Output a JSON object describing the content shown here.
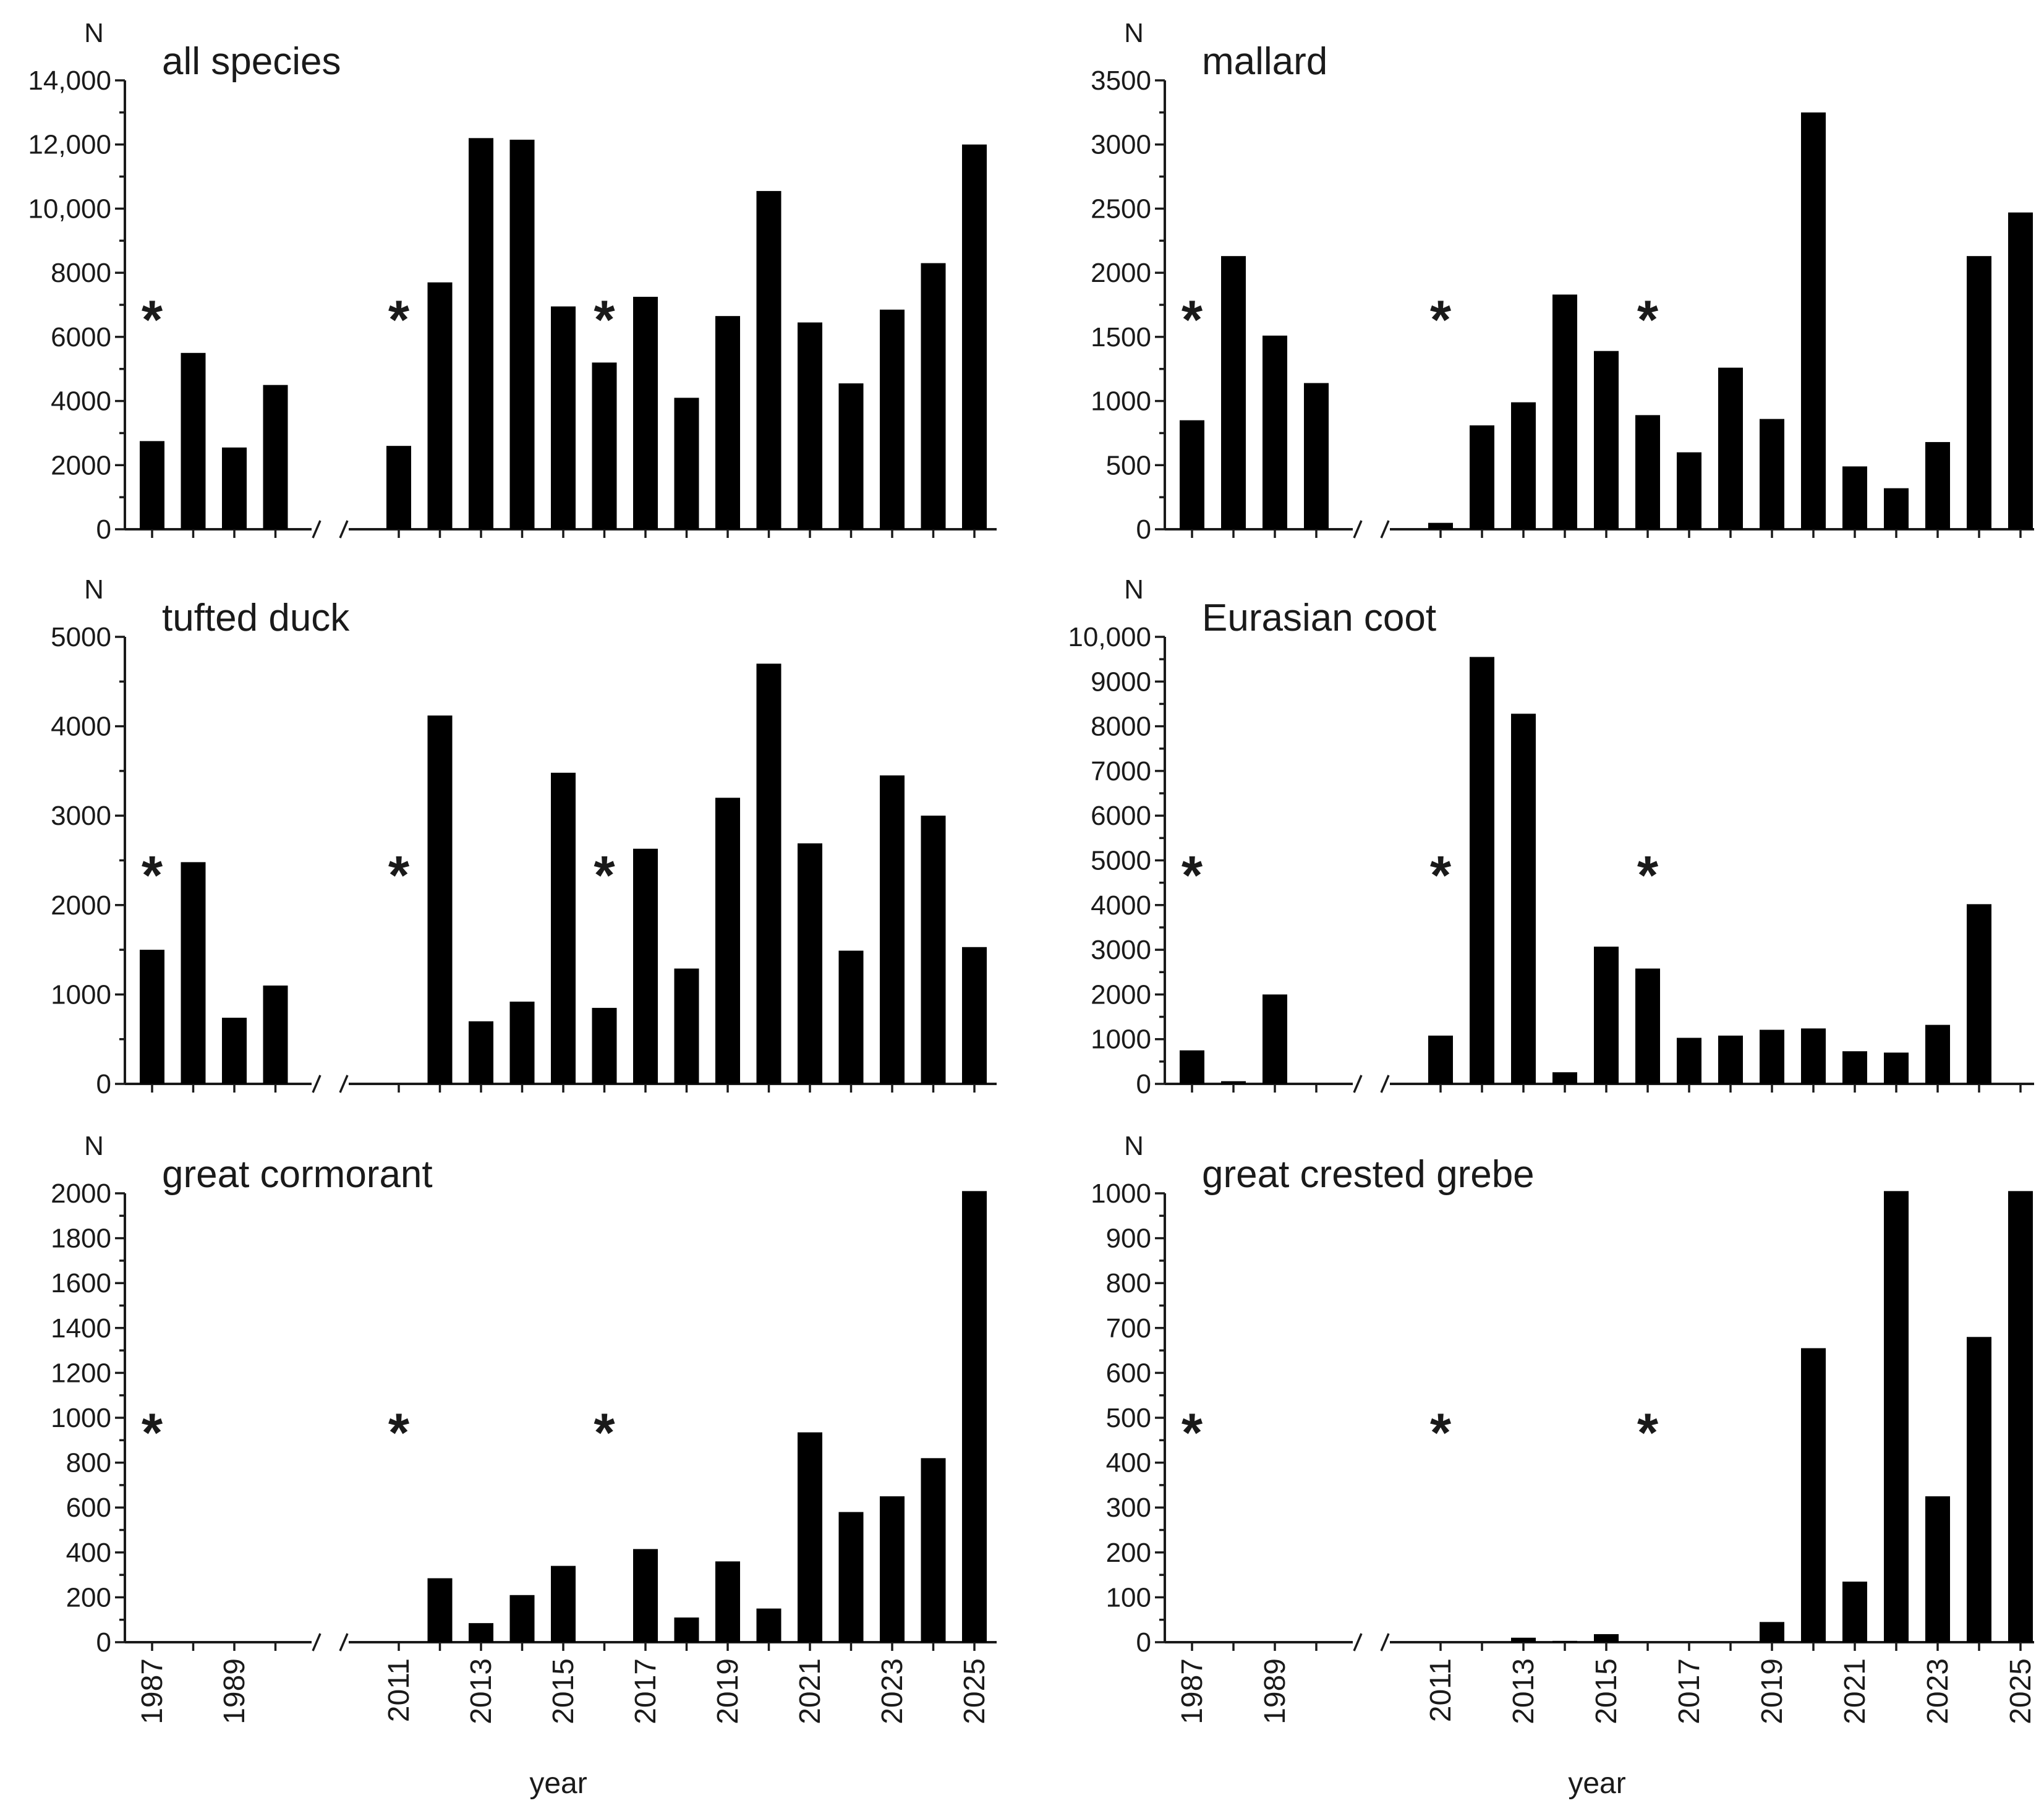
{
  "figure": {
    "x_axis_title": "year",
    "y_axis_symbol": "N",
    "star_symbol": "*",
    "bar_color": "#000000"
  },
  "chart_data": [
    {
      "type": "bar",
      "title": "all species",
      "ylabel": "N",
      "xlabel": "year",
      "ylim": [
        0,
        14000
      ],
      "yticks": [
        0,
        2000,
        4000,
        6000,
        8000,
        10000,
        12000,
        14000
      ],
      "ytick_labels": [
        "0",
        "2000",
        "4000",
        "6000",
        "8000",
        "10,000",
        "12,000",
        "14,000"
      ],
      "categories": [
        "1987",
        "1988",
        "1989",
        "1990",
        "2011",
        "2012",
        "2013",
        "2014",
        "2015",
        "2016",
        "2017",
        "2018",
        "2019",
        "2020",
        "2021",
        "2022",
        "2023",
        "2024",
        "2025"
      ],
      "values": [
        2750,
        5500,
        2550,
        4500,
        2600,
        7700,
        12200,
        12150,
        6950,
        5200,
        7250,
        4100,
        6650,
        10550,
        6450,
        4550,
        6850,
        8300,
        12000
      ],
      "x_tick_labels_shown": [
        "1987",
        "1989",
        "2011",
        "2013",
        "2015",
        "2017",
        "2019",
        "2021",
        "2023",
        "2025"
      ],
      "star_years": [
        "1987",
        "2011",
        "2016"
      ]
    },
    {
      "type": "bar",
      "title": "mallard",
      "ylabel": "N",
      "xlabel": "year",
      "ylim": [
        0,
        3500
      ],
      "yticks": [
        0,
        500,
        1000,
        1500,
        2000,
        2500,
        3000,
        3500
      ],
      "ytick_labels": [
        "0",
        "500",
        "1000",
        "1500",
        "2000",
        "2500",
        "3000",
        "3500"
      ],
      "categories": [
        "1987",
        "1988",
        "1989",
        "1990",
        "2011",
        "2012",
        "2013",
        "2014",
        "2015",
        "2016",
        "2017",
        "2018",
        "2019",
        "2020",
        "2021",
        "2022",
        "2023",
        "2024",
        "2025"
      ],
      "values": [
        850,
        2130,
        1510,
        1140,
        50,
        810,
        990,
        1830,
        1390,
        890,
        600,
        1260,
        860,
        3250,
        490,
        320,
        680,
        2130,
        2470
      ],
      "x_tick_labels_shown": [
        "1987",
        "1989",
        "2011",
        "2013",
        "2015",
        "2017",
        "2019",
        "2021",
        "2023",
        "2025"
      ],
      "star_years": [
        "1987",
        "2011",
        "2016"
      ]
    },
    {
      "type": "bar",
      "title": "tufted duck",
      "ylabel": "N",
      "xlabel": "year",
      "ylim": [
        0,
        5000
      ],
      "yticks": [
        0,
        1000,
        2000,
        3000,
        4000,
        5000
      ],
      "ytick_labels": [
        "0",
        "1000",
        "2000",
        "3000",
        "4000",
        "5000"
      ],
      "categories": [
        "1987",
        "1988",
        "1989",
        "1990",
        "2011",
        "2012",
        "2013",
        "2014",
        "2015",
        "2016",
        "2017",
        "2018",
        "2019",
        "2020",
        "2021",
        "2022",
        "2023",
        "2024",
        "2025"
      ],
      "values": [
        1500,
        2480,
        740,
        1100,
        0,
        4120,
        700,
        920,
        3480,
        850,
        2630,
        1290,
        3200,
        4700,
        2690,
        1490,
        3450,
        3000,
        1530
      ],
      "x_tick_labels_shown": [
        "1987",
        "1989",
        "2011",
        "2013",
        "2015",
        "2017",
        "2019",
        "2021",
        "2023",
        "2025"
      ],
      "star_years": [
        "1987",
        "2011",
        "2016"
      ]
    },
    {
      "type": "bar",
      "title": "Eurasian coot",
      "ylabel": "N",
      "xlabel": "year",
      "ylim": [
        0,
        10000
      ],
      "yticks": [
        0,
        1000,
        2000,
        3000,
        4000,
        5000,
        6000,
        7000,
        8000,
        9000,
        10000
      ],
      "ytick_labels": [
        "0",
        "1000",
        "2000",
        "3000",
        "4000",
        "5000",
        "6000",
        "7000",
        "8000",
        "9000",
        "10,000"
      ],
      "categories": [
        "1987",
        "1988",
        "1989",
        "1990",
        "2011",
        "2012",
        "2013",
        "2014",
        "2015",
        "2016",
        "2017",
        "2018",
        "2019",
        "2020",
        "2021",
        "2022",
        "2023",
        "2024",
        "2025"
      ],
      "values": [
        750,
        60,
        2000,
        0,
        1080,
        9550,
        8280,
        260,
        3070,
        2580,
        1030,
        1080,
        1210,
        1240,
        730,
        700,
        1320,
        4020,
        0
      ],
      "x_tick_labels_shown": [
        "1987",
        "1989",
        "2011",
        "2013",
        "2015",
        "2017",
        "2019",
        "2021",
        "2023",
        "2025"
      ],
      "star_years": [
        "1987",
        "2011",
        "2016"
      ]
    },
    {
      "type": "bar",
      "title": "great cormorant",
      "ylabel": "N",
      "xlabel": "year",
      "ylim": [
        0,
        2000
      ],
      "yticks": [
        0,
        200,
        400,
        600,
        800,
        1000,
        1200,
        1400,
        1600,
        1800,
        2000
      ],
      "ytick_labels": [
        "0",
        "200",
        "400",
        "600",
        "800",
        "1000",
        "1200",
        "1400",
        "1600",
        "1800",
        "2000"
      ],
      "categories": [
        "1987",
        "1988",
        "1989",
        "1990",
        "2011",
        "2012",
        "2013",
        "2014",
        "2015",
        "2016",
        "2017",
        "2018",
        "2019",
        "2020",
        "2021",
        "2022",
        "2023",
        "2024",
        "2025"
      ],
      "values": [
        0,
        0,
        0,
        0,
        0,
        285,
        85,
        210,
        340,
        0,
        415,
        110,
        360,
        150,
        935,
        580,
        650,
        820,
        2010
      ],
      "x_tick_labels_shown": [
        "1987",
        "1989",
        "2011",
        "2013",
        "2015",
        "2017",
        "2019",
        "2021",
        "2023",
        "2025"
      ],
      "star_years": [
        "1987",
        "2011",
        "2016"
      ]
    },
    {
      "type": "bar",
      "title": "great crested grebe",
      "ylabel": "N",
      "xlabel": "year",
      "ylim": [
        0,
        1000
      ],
      "yticks": [
        0,
        100,
        200,
        300,
        400,
        500,
        600,
        700,
        800,
        900,
        1000
      ],
      "ytick_labels": [
        "0",
        "100",
        "200",
        "300",
        "400",
        "500",
        "600",
        "700",
        "800",
        "900",
        "1000"
      ],
      "categories": [
        "1987",
        "1988",
        "1989",
        "1990",
        "2011",
        "2012",
        "2013",
        "2014",
        "2015",
        "2016",
        "2017",
        "2018",
        "2019",
        "2020",
        "2021",
        "2022",
        "2023",
        "2024",
        "2025"
      ],
      "values": [
        0,
        0,
        0,
        0,
        0,
        0,
        10,
        3,
        18,
        0,
        0,
        0,
        45,
        655,
        135,
        1005,
        325,
        680,
        1005
      ],
      "x_tick_labels_shown": [
        "1987",
        "1989",
        "2011",
        "2013",
        "2015",
        "2017",
        "2019",
        "2021",
        "2023",
        "2025"
      ],
      "star_years": [
        "1987",
        "2011",
        "2016"
      ]
    }
  ]
}
